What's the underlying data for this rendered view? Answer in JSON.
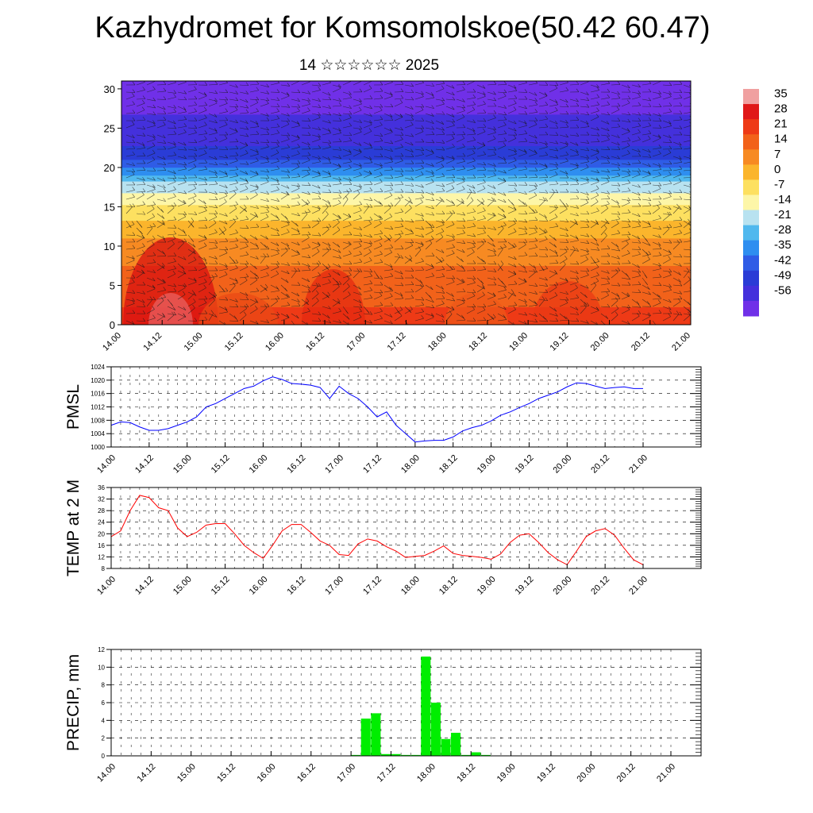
{
  "header": {
    "title": "Kazhydromet for Komsomolskoe(50.42 60.47)",
    "date": "14 ☆☆☆☆☆☆ 2025"
  },
  "time_ticks": [
    "14.00",
    "14.12",
    "15.00",
    "15.12",
    "16.00",
    "16.12",
    "17.00",
    "17.12",
    "18.00",
    "18.12",
    "19.00",
    "19.12",
    "20.00",
    "20.12",
    "21.00"
  ],
  "chart_data": [
    {
      "type": "heatmap",
      "x_ticks": [
        "14.00",
        "14.12",
        "15.00",
        "15.12",
        "16.00",
        "16.12",
        "17.00",
        "17.12",
        "18.00",
        "18.12",
        "19.00",
        "19.12",
        "20.00",
        "20.12",
        "21.00"
      ],
      "y_ticks": [
        "0",
        "5",
        "10",
        "15",
        "20",
        "25",
        "30"
      ],
      "ylim": [
        0,
        31
      ],
      "colorbar": {
        "labels": [
          "35",
          "28",
          "21",
          "14",
          "7",
          "0",
          "-7",
          "-14",
          "-21",
          "-28",
          "-35",
          "-42",
          "-49",
          "-56"
        ],
        "colors": [
          "#f0a0a0",
          "#e01818",
          "#ee3a16",
          "#f2621a",
          "#f78a22",
          "#fbb52c",
          "#fde060",
          "#fdf6a8",
          "#b8e2f0",
          "#50b8ee",
          "#2e8ef0",
          "#2f5ce6",
          "#2a3cd6",
          "#4430dc",
          "#7030e8"
        ]
      },
      "temperature_profile": {
        "heights": [
          0,
          3,
          6,
          9,
          12,
          14,
          16,
          18,
          20,
          22,
          24,
          26,
          28,
          31
        ],
        "values": [
          24,
          20,
          16,
          12,
          4,
          -2,
          -10,
          -20,
          -36,
          -47,
          -53,
          -55,
          -58,
          -60
        ]
      }
    },
    {
      "type": "line",
      "ylabel": "PMSL",
      "y_ticks": [
        "1000",
        "1004",
        "1008",
        "1012",
        "1016",
        "1020",
        "1024"
      ],
      "ylim": [
        1000,
        1024
      ],
      "color": "#0000ff",
      "x": [
        0,
        3,
        6,
        9,
        12,
        15,
        18,
        21,
        24,
        27,
        30,
        33,
        36,
        39,
        42,
        45,
        48,
        51,
        54,
        57,
        60,
        63,
        66,
        69,
        72,
        75,
        78,
        81,
        84,
        87,
        90,
        93,
        96,
        99,
        102,
        105,
        108,
        111,
        114,
        117,
        120,
        123,
        126,
        129,
        132,
        135,
        138,
        141,
        144,
        147,
        150,
        153,
        156,
        159,
        162,
        165,
        168
      ],
      "values": [
        1006.5,
        1007.5,
        1007.3,
        1006,
        1005,
        1005,
        1005.5,
        1006.5,
        1007.5,
        1009,
        1012,
        1013,
        1014.5,
        1016,
        1017.5,
        1018.2,
        1019.8,
        1021,
        1020.2,
        1019,
        1018.8,
        1018.5,
        1017.8,
        1014.5,
        1018.2,
        1016,
        1014.5,
        1012,
        1009,
        1010.5,
        1006.5,
        1004,
        1001.5,
        1001.8,
        1002,
        1002,
        1003,
        1004.8,
        1005.8,
        1006.5,
        1007.8,
        1009.5,
        1010.5,
        1011.8,
        1013,
        1014.5,
        1015.5,
        1016.5,
        1018,
        1019.2,
        1019,
        1018.2,
        1017.5,
        1017.8,
        1018,
        1017.5,
        1017.5
      ]
    },
    {
      "type": "line",
      "ylabel": "TEMP at 2 M",
      "y_ticks": [
        "8",
        "12",
        "16",
        "20",
        "24",
        "28",
        "32",
        "36"
      ],
      "ylim": [
        8,
        36
      ],
      "color": "#ff0000",
      "x": [
        0,
        3,
        6,
        9,
        12,
        15,
        18,
        21,
        24,
        27,
        30,
        33,
        36,
        39,
        42,
        45,
        48,
        51,
        54,
        57,
        60,
        63,
        66,
        69,
        72,
        75,
        78,
        81,
        84,
        87,
        90,
        93,
        96,
        99,
        102,
        105,
        108,
        111,
        114,
        117,
        120,
        123,
        126,
        129,
        132,
        135,
        138,
        141,
        144,
        147,
        150,
        153,
        156,
        159,
        162,
        165,
        168
      ],
      "values": [
        19,
        21,
        28,
        33.3,
        32.5,
        29,
        28,
        22,
        19,
        20.5,
        23,
        23.5,
        23.5,
        20,
        16,
        13.5,
        11.5,
        16,
        21,
        23.2,
        23.2,
        20.5,
        17.5,
        16,
        12.8,
        12.5,
        16.5,
        18.2,
        17.5,
        15.5,
        14,
        11.8,
        12.2,
        12.5,
        14,
        15.8,
        13.2,
        12.5,
        12.2,
        11.8,
        11.2,
        13,
        17,
        19.5,
        20,
        17,
        13.5,
        11,
        9.3,
        14,
        19,
        21,
        21.8,
        19.5,
        15,
        11,
        9.3
      ]
    },
    {
      "type": "bar",
      "ylabel": "PRECIP, mm",
      "y_ticks": [
        "0",
        "2",
        "4",
        "6",
        "8",
        "10",
        "12"
      ],
      "ylim": [
        0,
        12
      ],
      "color": "#00ee00",
      "x": [
        72,
        75,
        78,
        81,
        84,
        87,
        90,
        93,
        96,
        99,
        102,
        105,
        108,
        111
      ],
      "values": [
        0.1,
        4.2,
        4.8,
        0.2,
        0.2,
        0.1,
        0.1,
        11.2,
        6.0,
        1.9,
        2.6,
        0.1,
        0.4,
        0.1
      ]
    }
  ]
}
